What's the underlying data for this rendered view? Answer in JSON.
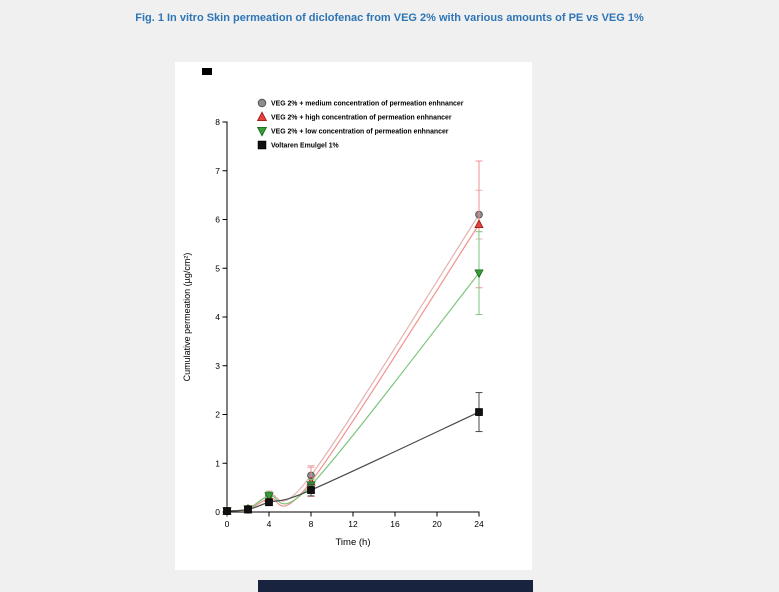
{
  "page": {
    "title": "Fig. 1 In vitro Skin permeation of diclofenac from VEG 2% with various amounts of PE vs VEG 1%"
  },
  "colors": {
    "title_blue": "#2e75b6",
    "page_background": "#f0f0f0",
    "panel_background": "#ffffff",
    "footer_bar": "#17233f"
  },
  "chart_data": {
    "type": "line",
    "title": "",
    "xlabel": "Time (h)",
    "ylabel": "Cumulative permeation (µg/cm²)",
    "xlim": [
      0,
      24
    ],
    "ylim": [
      0,
      8
    ],
    "xticks": [
      0,
      4,
      8,
      12,
      16,
      20,
      24
    ],
    "yticks": [
      0,
      1,
      2,
      3,
      4,
      5,
      6,
      7,
      8
    ],
    "grid": false,
    "legend_position": "top-left-inside",
    "x": [
      0,
      2,
      4,
      8,
      24
    ],
    "series": [
      {
        "id": "veg2-medium-pe",
        "name": "VEG 2% + medium concentration of permeation enhnancer",
        "marker": "circle",
        "marker_color": "#8c8c8c",
        "marker_stroke": "#4f4f4f",
        "line_color": "#e5b3b0",
        "values": [
          0.02,
          0.07,
          0.35,
          0.75,
          6.1
        ],
        "yerr": [
          0,
          0,
          0.08,
          0.2,
          0.5
        ]
      },
      {
        "id": "veg2-high-pe",
        "name": "VEG 2% + high  concentration of permeation enhnancer",
        "marker": "triangle-up",
        "marker_color": "#e8413e",
        "marker_stroke": "#9e1f1c",
        "line_color": "#f2928e",
        "values": [
          0.02,
          0.06,
          0.28,
          0.62,
          5.9
        ],
        "yerr": [
          0,
          0,
          0.08,
          0.3,
          1.3
        ]
      },
      {
        "id": "veg2-low-pe",
        "name": "VEG 2% + low  concentration of permeation enhnancer",
        "marker": "triangle-down",
        "marker_color": "#3a9e3a",
        "marker_stroke": "#1d6b1d",
        "line_color": "#7cc57c",
        "values": [
          0.02,
          0.06,
          0.33,
          0.55,
          4.9
        ],
        "yerr": [
          0,
          0,
          0.08,
          0.12,
          0.85
        ]
      },
      {
        "id": "voltaren-emulgel",
        "name": "Voltaren Emulgel 1%",
        "marker": "square",
        "marker_color": "#111111",
        "marker_stroke": "#000000",
        "line_color": "#4a4a4a",
        "values": [
          0.02,
          0.05,
          0.2,
          0.45,
          2.05
        ],
        "yerr": [
          0,
          0,
          0.05,
          0.12,
          0.4
        ]
      }
    ]
  }
}
